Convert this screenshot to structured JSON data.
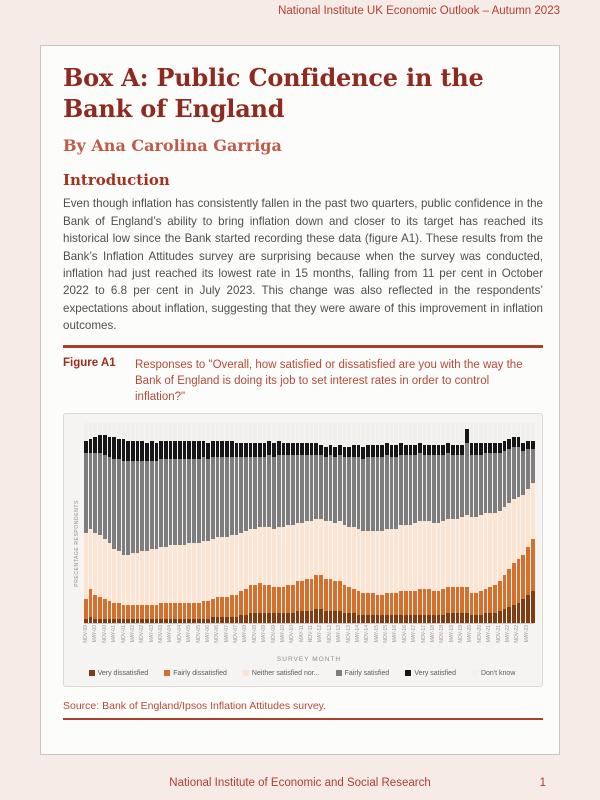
{
  "page": {
    "header": "National Institute UK Economic Outlook – Autumn 2023",
    "footer": {
      "text": "National Institute of Economic and Social Research",
      "page_number": "1"
    }
  },
  "article": {
    "title": "Box A: Public Confidence in the Bank of England",
    "byline": "By Ana Carolina Garriga",
    "section_heading": "Introduction",
    "paragraph": "Even though inflation has consistently fallen in the past two quarters, public confidence in the Bank of England’s ability to bring inflation down and closer to its target has reached its historical low since the Bank started recording these data (figure A1). These results from the Bank’s Inflation Attitudes survey are surprising because when the survey was conducted, inflation had just reached its lowest rate in 15 months, falling from 11 per cent in October 2022 to 6.8 per cent in July 2023. This change was also reflected in the respondents’ expectations about inflation, suggesting that they were aware of this improvement in inflation outcomes.",
    "figure_label": "Figure A1",
    "figure_caption": "Responses to \"Overall, how satisfied or dissatisfied are you with the way the Bank of England is doing its job to set interest rates in order to control inflation?\"",
    "source": "Source: Bank of England/Ipsos Inflation Attitudes survey."
  },
  "colors": {
    "accent_red": "#a8402c",
    "title_red": "#8e2a1f",
    "caption_red": "#b54a36",
    "page_background": "#f7ebe7"
  },
  "chart_data": {
    "type": "bar",
    "stacked": true,
    "unit": "percent of respondents",
    "xlabel": "SURVEY MONTH",
    "ylabel": "PRECENTAGE RESPONDENTS",
    "ylim": [
      0,
      100
    ],
    "grid": false,
    "legend_position": "bottom",
    "n_bars": 96,
    "note": "Quarterly survey bars from Nov-99 to Aug-23; x tick labels shown under every second bar; Don't know segment is the white remainder to 100%",
    "tick_labels": [
      "NOV-99",
      "MAY-00",
      "NOV-00",
      "MAY-01",
      "NOV-01",
      "MAY-02",
      "NOV-02",
      "MAY-03",
      "NOV-03",
      "MAY-04",
      "NOV-04",
      "MAY-05",
      "NOV-05",
      "MAY-06",
      "NOV-06",
      "MAY-07",
      "NOV-07",
      "MAY-08",
      "NOV-08",
      "MAY-09",
      "NOV-09",
      "MAY-10",
      "NOV-10",
      "MAY-11",
      "NOV-11",
      "MAY-12",
      "NOV-12",
      "MAY-13",
      "NOV-13",
      "MAY-14",
      "NOV-14",
      "MAY-15",
      "NOV-15",
      "MAY-16",
      "NOV-16",
      "MAY-17",
      "NOV-17",
      "MAY-18",
      "NOV-18",
      "MAY-19",
      "NOV-19",
      "MAY-20",
      "NOV-20",
      "MAY-21",
      "NOV-21",
      "MAY-22",
      "NOV-22",
      "MAY-23"
    ],
    "series": [
      {
        "name": "Very dissatisfied",
        "color": "#7e3d12",
        "values": [
          2,
          3,
          2,
          2,
          2,
          2,
          2,
          2,
          2,
          2,
          2,
          2,
          2,
          2,
          2,
          2,
          2,
          2,
          2,
          2,
          2,
          2,
          2,
          2,
          2,
          2,
          2,
          3,
          3,
          3,
          3,
          3,
          3,
          4,
          4,
          5,
          5,
          5,
          5,
          5,
          5,
          5,
          5,
          5,
          5,
          6,
          6,
          6,
          6,
          7,
          7,
          6,
          6,
          6,
          6,
          5,
          5,
          5,
          4,
          4,
          4,
          4,
          4,
          4,
          4,
          4,
          4,
          4,
          4,
          4,
          4,
          4,
          4,
          4,
          4,
          4,
          4,
          5,
          5,
          5,
          5,
          5,
          4,
          4,
          4,
          5,
          5,
          5,
          6,
          7,
          8,
          9,
          10,
          12,
          14,
          16
        ]
      },
      {
        "name": "Fairly dissatisfied",
        "color": "#d4702c",
        "values": [
          10,
          14,
          12,
          11,
          10,
          9,
          8,
          8,
          7,
          7,
          7,
          7,
          7,
          7,
          7,
          7,
          8,
          8,
          8,
          8,
          8,
          8,
          8,
          8,
          8,
          9,
          9,
          9,
          10,
          10,
          10,
          11,
          11,
          12,
          13,
          14,
          14,
          15,
          14,
          14,
          13,
          13,
          13,
          14,
          14,
          15,
          15,
          16,
          16,
          17,
          17,
          16,
          16,
          15,
          15,
          14,
          13,
          12,
          12,
          11,
          11,
          11,
          10,
          10,
          11,
          11,
          11,
          12,
          12,
          12,
          12,
          13,
          13,
          13,
          12,
          12,
          13,
          13,
          13,
          13,
          13,
          13,
          11,
          11,
          12,
          12,
          13,
          14,
          15,
          17,
          19,
          21,
          22,
          22,
          24,
          26
        ]
      },
      {
        "name": "Neither satisfied nor...",
        "color": "#fbe4d2",
        "values": [
          33,
          30,
          31,
          31,
          30,
          29,
          27,
          26,
          25,
          25,
          26,
          26,
          27,
          27,
          28,
          28,
          28,
          28,
          29,
          29,
          29,
          29,
          30,
          30,
          30,
          30,
          30,
          30,
          30,
          30,
          30,
          30,
          30,
          29,
          29,
          28,
          28,
          28,
          29,
          29,
          29,
          30,
          30,
          30,
          30,
          29,
          29,
          29,
          29,
          28,
          28,
          29,
          29,
          29,
          30,
          30,
          30,
          31,
          31,
          31,
          31,
          31,
          32,
          32,
          32,
          32,
          32,
          33,
          33,
          33,
          34,
          34,
          34,
          34,
          34,
          34,
          34,
          34,
          34,
          34,
          35,
          36,
          38,
          38,
          38,
          38,
          37,
          36,
          35,
          34,
          33,
          32,
          31,
          30,
          29,
          28
        ]
      },
      {
        "name": "Fairly satisfied",
        "color": "#7d7d7d",
        "values": [
          40,
          38,
          40,
          41,
          42,
          43,
          45,
          46,
          47,
          47,
          46,
          46,
          45,
          45,
          44,
          44,
          44,
          44,
          43,
          43,
          43,
          43,
          42,
          42,
          42,
          42,
          41,
          41,
          40,
          40,
          40,
          39,
          39,
          38,
          37,
          36,
          36,
          35,
          35,
          36,
          36,
          36,
          36,
          35,
          35,
          34,
          34,
          33,
          33,
          32,
          32,
          32,
          33,
          33,
          33,
          34,
          35,
          35,
          36,
          36,
          37,
          37,
          37,
          37,
          37,
          36,
          36,
          35,
          35,
          35,
          34,
          34,
          33,
          33,
          34,
          34,
          33,
          33,
          32,
          32,
          31,
          36,
          31,
          31,
          30,
          30,
          30,
          30,
          29,
          28,
          27,
          26,
          25,
          22,
          20,
          17
        ]
      },
      {
        "name": "Very satisfied",
        "color": "#161616",
        "values": [
          6,
          7,
          8,
          9,
          10,
          10,
          11,
          10,
          11,
          10,
          10,
          10,
          10,
          9,
          10,
          9,
          9,
          9,
          9,
          9,
          9,
          9,
          9,
          9,
          9,
          8,
          8,
          8,
          8,
          8,
          8,
          8,
          7,
          7,
          7,
          7,
          7,
          7,
          7,
          7,
          7,
          7,
          6,
          6,
          6,
          6,
          6,
          6,
          6,
          6,
          5,
          5,
          5,
          5,
          5,
          5,
          5,
          6,
          6,
          6,
          6,
          6,
          6,
          6,
          6,
          6,
          6,
          6,
          5,
          5,
          5,
          5,
          5,
          5,
          5,
          5,
          5,
          5,
          5,
          5,
          5,
          7,
          6,
          6,
          6,
          5,
          5,
          5,
          5,
          5,
          5,
          5,
          5,
          4,
          4,
          4
        ]
      }
    ],
    "remainder_series": {
      "name": "Don't know",
      "color": "#f1efec"
    },
    "legend": [
      {
        "label": "Very dissatisfied",
        "color": "#7e3d12"
      },
      {
        "label": "Fairly dissatisfied",
        "color": "#d4702c"
      },
      {
        "label": "Neither satisfied nor...",
        "color": "#fbe4d2"
      },
      {
        "label": "Fairly satisfied",
        "color": "#7d7d7d"
      },
      {
        "label": "Very satisfied",
        "color": "#161616"
      },
      {
        "label": "Don't know",
        "color": "#f3f1ef"
      }
    ]
  }
}
